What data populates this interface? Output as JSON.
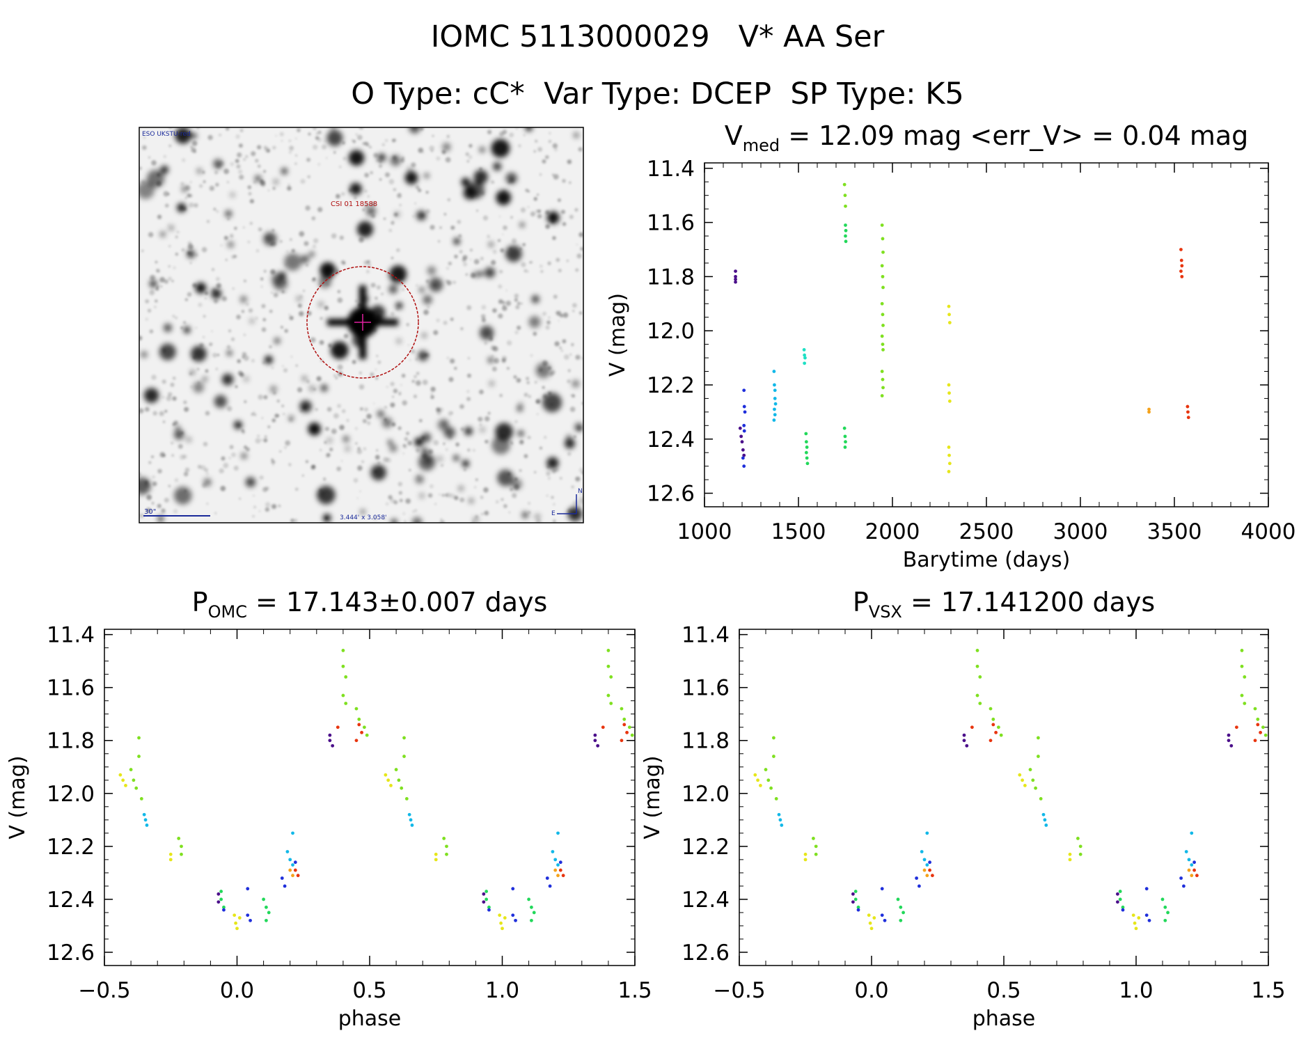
{
  "header": {
    "line1": "IOMC 5113000029   V* AA Ser",
    "line2": "O Type: cC*  Var Type: DCEP  SP Type: K5"
  },
  "image_panel": {
    "survey_label": "ESO UKSTU-red",
    "target_label": "CSI 01 18588",
    "scale_label": "30\"",
    "fov_label": "3.444' x 3.058'",
    "north_label": "N",
    "east_label": "E"
  },
  "chart_data": [
    {
      "id": "lightcurve",
      "type": "scatter",
      "title": "V_med = 12.09 mag <err_V> = 0.04 mag",
      "title_parts": {
        "main": "V",
        "sub": "med",
        "rest": " = 12.09 mag <err_V> = 0.04 mag"
      },
      "xlabel": "Barytime (days)",
      "ylabel": "V (mag)",
      "xlim": [
        1000,
        4000
      ],
      "ylim": [
        12.65,
        11.38
      ],
      "xticks": [
        1000,
        1500,
        2000,
        2500,
        3000,
        3500,
        4000
      ],
      "yticks": [
        11.4,
        11.6,
        11.8,
        12.0,
        12.2,
        12.4,
        12.6
      ],
      "series": [
        {
          "color": "#4b0f8a",
          "points": [
            [
              1165,
              11.78
            ],
            [
              1165,
              11.8
            ],
            [
              1165,
              11.81
            ],
            [
              1165,
              11.82
            ],
            [
              1190,
              12.36
            ],
            [
              1195,
              12.39
            ],
            [
              1200,
              12.41
            ],
            [
              1205,
              12.44
            ],
            [
              1210,
              12.46
            ]
          ]
        },
        {
          "color": "#1f2fdb",
          "points": [
            [
              1210,
              12.22
            ],
            [
              1212,
              12.28
            ],
            [
              1215,
              12.3
            ],
            [
              1210,
              12.35
            ],
            [
              1212,
              12.37
            ],
            [
              1205,
              12.47
            ],
            [
              1210,
              12.5
            ]
          ]
        },
        {
          "color": "#12b8e8",
          "points": [
            [
              1370,
              12.15
            ],
            [
              1372,
              12.2
            ],
            [
              1375,
              12.22
            ],
            [
              1375,
              12.25
            ],
            [
              1378,
              12.27
            ],
            [
              1372,
              12.29
            ],
            [
              1375,
              12.31
            ],
            [
              1370,
              12.33
            ]
          ]
        },
        {
          "color": "#1ee0c4",
          "points": [
            [
              1530,
              12.07
            ],
            [
              1532,
              12.09
            ],
            [
              1535,
              12.1
            ],
            [
              1532,
              12.12
            ]
          ]
        },
        {
          "color": "#22d85a",
          "points": [
            [
              1540,
              12.38
            ],
            [
              1542,
              12.41
            ],
            [
              1545,
              12.43
            ],
            [
              1542,
              12.45
            ],
            [
              1545,
              12.47
            ],
            [
              1548,
              12.49
            ],
            [
              1750,
              11.61
            ],
            [
              1752,
              11.63
            ],
            [
              1750,
              11.65
            ],
            [
              1752,
              11.67
            ],
            [
              1745,
              12.36
            ],
            [
              1748,
              12.39
            ],
            [
              1750,
              12.41
            ],
            [
              1748,
              12.43
            ]
          ]
        },
        {
          "color": "#7fe020",
          "points": [
            [
              1745,
              11.46
            ],
            [
              1748,
              11.5
            ],
            [
              1750,
              11.54
            ],
            [
              1945,
              11.61
            ],
            [
              1948,
              11.66
            ],
            [
              1950,
              11.71
            ],
            [
              1945,
              11.76
            ],
            [
              1948,
              11.8
            ],
            [
              1950,
              11.84
            ],
            [
              1945,
              11.9
            ],
            [
              1948,
              11.94
            ],
            [
              1950,
              11.98
            ],
            [
              1945,
              12.02
            ],
            [
              1948,
              12.05
            ],
            [
              1950,
              12.07
            ],
            [
              1945,
              12.15
            ],
            [
              1948,
              12.18
            ],
            [
              1950,
              12.21
            ],
            [
              1945,
              12.24
            ]
          ]
        },
        {
          "color": "#e6e61a",
          "points": [
            [
              2300,
              11.91
            ],
            [
              2302,
              11.94
            ],
            [
              2305,
              11.97
            ],
            [
              2300,
              12.2
            ],
            [
              2302,
              12.23
            ],
            [
              2305,
              12.26
            ],
            [
              2300,
              12.43
            ],
            [
              2302,
              12.46
            ],
            [
              2305,
              12.49
            ],
            [
              2300,
              12.52
            ]
          ]
        },
        {
          "color": "#f5a21a",
          "points": [
            [
              3365,
              12.29
            ],
            [
              3365,
              12.3
            ]
          ]
        },
        {
          "color": "#e8350f",
          "points": [
            [
              3535,
              11.7
            ],
            [
              3538,
              11.74
            ],
            [
              3540,
              11.76
            ],
            [
              3535,
              11.78
            ],
            [
              3540,
              11.8
            ],
            [
              3570,
              12.28
            ],
            [
              3572,
              12.3
            ],
            [
              3575,
              12.32
            ]
          ]
        }
      ]
    },
    {
      "id": "phase_omc",
      "type": "scatter",
      "title": "P_OMC = 17.143±0.007 days",
      "title_parts": {
        "main": "P",
        "sub": "OMC",
        "rest": " = 17.143±0.007 days"
      },
      "xlabel": "phase",
      "ylabel": "V (mag)",
      "xlim": [
        -0.5,
        1.5
      ],
      "ylim": [
        12.65,
        11.38
      ],
      "xticks": [
        -0.5,
        0.0,
        0.5,
        1.0,
        1.5
      ],
      "yticks": [
        11.4,
        11.6,
        11.8,
        12.0,
        12.2,
        12.4,
        12.6
      ]
    },
    {
      "id": "phase_vsx",
      "type": "scatter",
      "title": "P_VSX = 17.141200 days",
      "title_parts": {
        "main": "P",
        "sub": "VSX",
        "rest": " = 17.141200 days"
      },
      "xlabel": "phase",
      "ylabel": "V (mag)",
      "xlim": [
        -0.5,
        1.5
      ],
      "ylim": [
        12.65,
        11.38
      ],
      "xticks": [
        -0.5,
        0.0,
        0.5,
        1.0,
        1.5
      ],
      "yticks": [
        11.4,
        11.6,
        11.8,
        12.0,
        12.2,
        12.4,
        12.6
      ]
    }
  ],
  "phase_series": [
    {
      "color": "#e6e61a",
      "points": [
        [
          -0.44,
          11.93
        ],
        [
          -0.43,
          11.95
        ],
        [
          -0.42,
          11.97
        ],
        [
          -0.25,
          12.23
        ],
        [
          -0.25,
          12.25
        ],
        [
          -0.01,
          12.46
        ],
        [
          -0.005,
          12.49
        ],
        [
          0.0,
          12.51
        ],
        [
          0.01,
          12.47
        ]
      ]
    },
    {
      "color": "#7fe020",
      "points": [
        [
          -0.4,
          11.91
        ],
        [
          -0.39,
          11.95
        ],
        [
          -0.38,
          11.98
        ],
        [
          -0.37,
          11.79
        ],
        [
          -0.37,
          11.86
        ],
        [
          -0.36,
          12.02
        ],
        [
          -0.22,
          12.17
        ],
        [
          -0.21,
          12.2
        ],
        [
          -0.21,
          12.23
        ],
        [
          0.4,
          11.46
        ],
        [
          0.4,
          11.52
        ],
        [
          0.41,
          11.56
        ],
        [
          0.4,
          11.63
        ],
        [
          0.41,
          11.66
        ],
        [
          0.45,
          11.68
        ],
        [
          0.46,
          11.72
        ],
        [
          0.48,
          11.75
        ],
        [
          0.49,
          11.78
        ]
      ]
    },
    {
      "color": "#12b8e8",
      "points": [
        [
          -0.35,
          12.08
        ],
        [
          -0.345,
          12.1
        ],
        [
          -0.34,
          12.12
        ],
        [
          0.19,
          12.22
        ],
        [
          0.2,
          12.25
        ],
        [
          0.21,
          12.27
        ],
        [
          0.21,
          12.15
        ]
      ]
    },
    {
      "color": "#22d85a",
      "points": [
        [
          -0.06,
          12.37
        ],
        [
          -0.06,
          12.4
        ],
        [
          -0.05,
          12.43
        ],
        [
          0.1,
          12.4
        ],
        [
          0.11,
          12.43
        ],
        [
          0.12,
          12.45
        ],
        [
          0.11,
          12.48
        ]
      ]
    },
    {
      "color": "#4b0f8a",
      "points": [
        [
          -0.07,
          12.38
        ],
        [
          -0.07,
          12.41
        ],
        [
          0.35,
          11.78
        ],
        [
          0.35,
          11.8
        ],
        [
          0.36,
          11.82
        ]
      ]
    },
    {
      "color": "#1f2fdb",
      "points": [
        [
          -0.05,
          12.44
        ],
        [
          0.04,
          12.36
        ],
        [
          0.04,
          12.46
        ],
        [
          0.05,
          12.48
        ],
        [
          0.17,
          12.32
        ],
        [
          0.18,
          12.35
        ],
        [
          0.22,
          12.26
        ]
      ]
    },
    {
      "color": "#e8350f",
      "points": [
        [
          0.38,
          11.75
        ],
        [
          0.46,
          11.74
        ],
        [
          0.47,
          11.77
        ],
        [
          0.45,
          11.8
        ],
        [
          0.22,
          12.29
        ],
        [
          0.23,
          12.31
        ]
      ]
    },
    {
      "color": "#f5a21a",
      "points": [
        [
          0.2,
          12.29
        ],
        [
          0.21,
          12.31
        ]
      ]
    }
  ]
}
